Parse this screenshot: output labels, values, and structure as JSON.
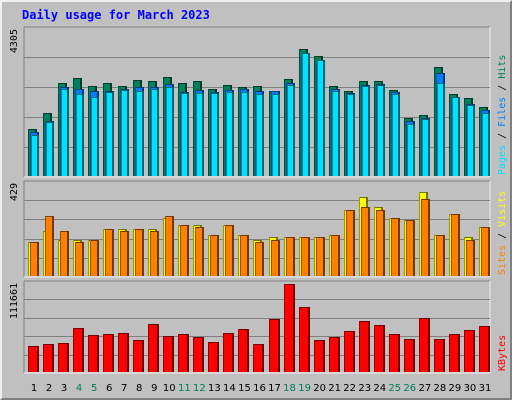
{
  "colors": {
    "bg": "#c0c0c0",
    "title": "#0000ff",
    "hits": "#00805c",
    "files": "#0080ff",
    "pages": "#00e0ff",
    "visits": "#ffff00",
    "sites": "#ff8000",
    "kbytes": "#ff0000",
    "day_normal": "#000000",
    "day_weekend": "#00805c"
  },
  "chart_data": [
    {
      "type": "bar",
      "title": "Daily usage for March 2023",
      "categories": [
        "1",
        "2",
        "3",
        "4",
        "5",
        "6",
        "7",
        "8",
        "9",
        "10",
        "11",
        "12",
        "13",
        "14",
        "15",
        "16",
        "17",
        "18",
        "19",
        "20",
        "21",
        "22",
        "23",
        "24",
        "25",
        "26",
        "27",
        "28",
        "29",
        "30",
        "31"
      ],
      "weekend_days": [
        "4",
        "5",
        "11",
        "12",
        "18",
        "19",
        "25",
        "26"
      ],
      "ymax_label": "4305",
      "ylim": [
        0,
        4305
      ],
      "legend": [
        "Pages",
        "Files",
        "Hits"
      ],
      "series": [
        {
          "name": "Hits",
          "values": [
            1390,
            1870,
            2750,
            2890,
            2650,
            2730,
            2660,
            2830,
            2800,
            2920,
            2740,
            2800,
            2580,
            2690,
            2620,
            2660,
            2520,
            2860,
            3740,
            3530,
            2660,
            2520,
            2810,
            2790,
            2540,
            1700,
            1800,
            3210,
            2430,
            2290,
            2030
          ]
        },
        {
          "name": "Files",
          "values": [
            1290,
            1620,
            2630,
            2580,
            2520,
            2500,
            2560,
            2610,
            2620,
            2700,
            2490,
            2550,
            2470,
            2530,
            2570,
            2520,
            2500,
            2740,
            3500,
            3340,
            2580,
            2460,
            2690,
            2720,
            2470,
            1610,
            1720,
            3030,
            2330,
            2130,
            1960
          ]
        },
        {
          "name": "Pages",
          "values": [
            1220,
            1590,
            2580,
            2420,
            2340,
            2480,
            2540,
            2510,
            2580,
            2630,
            2460,
            2460,
            2440,
            2470,
            2470,
            2410,
            2430,
            2670,
            3620,
            3410,
            2510,
            2410,
            2650,
            2670,
            2420,
            1540,
            1690,
            2730,
            2340,
            2090,
            1870
          ]
        }
      ]
    },
    {
      "type": "bar",
      "ymax_label": "429",
      "ylim": [
        0,
        429
      ],
      "legend": [
        "Sites",
        "Visits"
      ],
      "series": [
        {
          "name": "Visits",
          "values": [
            160,
            210,
            170,
            170,
            170,
            220,
            220,
            220,
            220,
            270,
            240,
            240,
            190,
            240,
            190,
            170,
            180,
            180,
            180,
            180,
            190,
            310,
            370,
            320,
            270,
            260,
            390,
            190,
            290,
            180,
            230
          ]
        },
        {
          "name": "Sites",
          "values": [
            160,
            280,
            210,
            160,
            170,
            220,
            210,
            220,
            210,
            280,
            240,
            230,
            190,
            240,
            190,
            160,
            170,
            180,
            180,
            180,
            190,
            310,
            320,
            310,
            270,
            260,
            360,
            190,
            290,
            170,
            230
          ]
        }
      ]
    },
    {
      "type": "bar",
      "ymax_label": "111661",
      "ylim": [
        0,
        111661
      ],
      "legend": [
        "KBytes"
      ],
      "series": [
        {
          "name": "KBytes",
          "values": [
            33000,
            36000,
            37000,
            56000,
            47000,
            48000,
            49000,
            41000,
            61000,
            46000,
            48000,
            44000,
            38000,
            49000,
            54000,
            36000,
            67000,
            111661,
            82000,
            41000,
            44000,
            52000,
            65000,
            60000,
            48000,
            42000,
            68000,
            42000,
            48000,
            53000,
            58000
          ]
        }
      ]
    }
  ]
}
